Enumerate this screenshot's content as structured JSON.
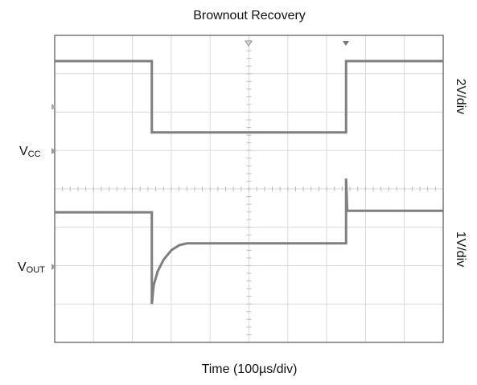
{
  "chart_data": {
    "type": "line",
    "title": "Brownout Recovery",
    "x_label": "Time (100µs/div)",
    "channel_labels": [
      {
        "main": "V",
        "sub": "CC"
      },
      {
        "main": "V",
        "sub": "OUT"
      }
    ],
    "scale_labels": [
      "2V/div",
      "1V/div"
    ],
    "xlim": [
      0,
      10
    ],
    "ylim": [
      0,
      8
    ],
    "grid": true,
    "series": [
      {
        "color": "#7f7f7f",
        "x": [
          0,
          2.5,
          2.5,
          7.5,
          7.5,
          10
        ],
        "values": [
          7.33,
          7.33,
          5.47,
          5.47,
          7.33,
          7.33
        ]
      },
      {
        "color": "#7f7f7f",
        "x": [
          0,
          2.5,
          2.5,
          2.55,
          2.65,
          2.8,
          3.0,
          3.2,
          3.4,
          7.5,
          7.5,
          7.53,
          7.6,
          10
        ],
        "values": [
          3.39,
          3.39,
          1.0,
          1.5,
          1.85,
          2.15,
          2.4,
          2.53,
          2.58,
          2.58,
          4.27,
          3.43,
          3.43,
          3.43
        ]
      }
    ]
  }
}
